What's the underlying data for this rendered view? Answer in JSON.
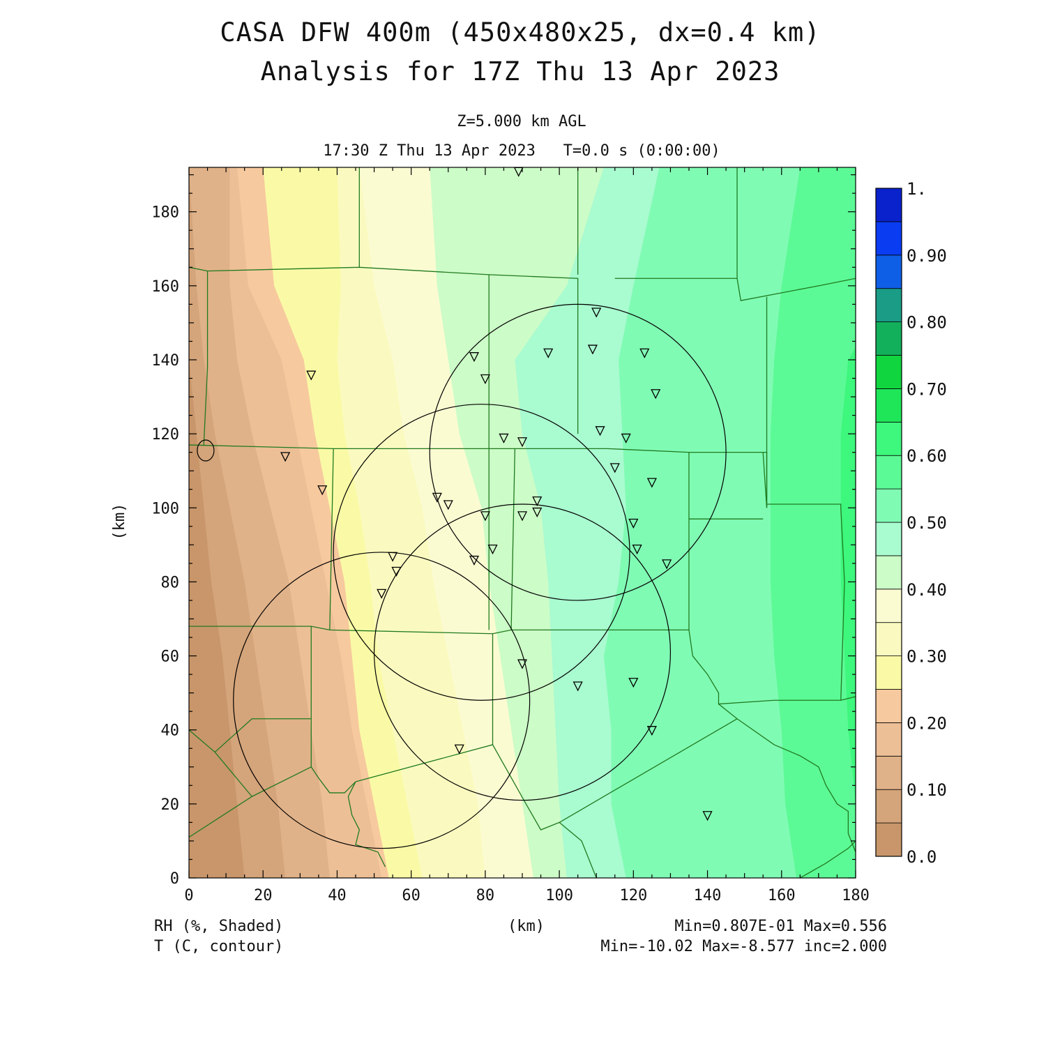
{
  "header": {
    "title_line1": "CASA DFW 400m (450x480x25, dx=0.4 km)",
    "title_line2": "Analysis for 17Z Thu 13 Apr 2023",
    "level": "Z=5.000 km AGL",
    "valid_time": "17:30 Z Thu 13 Apr 2023   T=0.0 s (0:00:00)"
  },
  "footer": {
    "field1": "RH (%, Shaded)",
    "field2": "T (C, contour)",
    "xunit": "(km)",
    "stats1": "Min=0.807E-01 Max=0.556",
    "stats2": "Min=-10.02 Max=-8.577 inc=2.000"
  },
  "chart_data": {
    "type": "heatmap",
    "title": "CASA DFW 400m (450x480x25, dx=0.4 km)",
    "xlabel": "(km)",
    "ylabel": "(km)",
    "xlim": [
      0,
      180
    ],
    "ylim": [
      0,
      192
    ],
    "xticks": [
      0,
      20,
      40,
      60,
      80,
      100,
      120,
      140,
      160,
      180
    ],
    "yticks": [
      0,
      20,
      40,
      60,
      80,
      100,
      120,
      140,
      160,
      180
    ],
    "colorbar": {
      "levels": [
        0.0,
        0.05,
        0.1,
        0.15,
        0.2,
        0.25,
        0.3,
        0.35,
        0.4,
        0.45,
        0.5,
        0.55,
        0.6,
        0.65,
        0.7,
        0.75,
        0.8,
        0.85,
        0.9,
        0.95,
        1.0
      ],
      "labels": [
        "0.0",
        "0.10",
        "0.20",
        "0.30",
        "0.40",
        "0.50",
        "0.60",
        "0.70",
        "0.80",
        "0.90",
        "1."
      ],
      "colors": [
        "#c8966a",
        "#d4a47a",
        "#e0b289",
        "#edbf96",
        "#f7c99e",
        "#fafaa6",
        "#fafac0",
        "#fbfbd2",
        "#ccfcc7",
        "#a9fbd0",
        "#80fbb4",
        "#5cfa96",
        "#3ef77d",
        "#1fe658",
        "#10d53f",
        "#13b05b",
        "#1a9c86",
        "#0f5fe6",
        "#0a3cf2",
        "#0a22cc"
      ]
    },
    "rh_range": {
      "min": 0.0807,
      "max": 0.556
    },
    "t_range": {
      "min": -10.02,
      "max": -8.577,
      "inc": 2.0
    },
    "radar_rings": [
      {
        "center": [
          105,
          115
        ],
        "radius": 40
      },
      {
        "center": [
          79,
          88
        ],
        "radius": 40
      },
      {
        "center": [
          90,
          61
        ],
        "radius": 40
      },
      {
        "center": [
          52,
          48
        ],
        "radius": 40
      }
    ],
    "stations": [
      [
        89,
        191
      ],
      [
        110,
        153
      ],
      [
        109,
        143
      ],
      [
        123,
        142
      ],
      [
        97,
        142
      ],
      [
        77,
        141
      ],
      [
        80,
        135
      ],
      [
        126,
        131
      ],
      [
        33,
        136
      ],
      [
        111,
        121
      ],
      [
        118,
        119
      ],
      [
        85,
        119
      ],
      [
        90,
        118
      ],
      [
        26,
        114
      ],
      [
        115,
        111
      ],
      [
        125,
        107
      ],
      [
        36,
        105
      ],
      [
        67,
        103
      ],
      [
        70,
        101
      ],
      [
        94,
        102
      ],
      [
        94,
        99
      ],
      [
        80,
        98
      ],
      [
        90,
        98
      ],
      [
        120,
        96
      ],
      [
        55,
        87
      ],
      [
        82,
        89
      ],
      [
        77,
        86
      ],
      [
        121,
        89
      ],
      [
        129,
        85
      ],
      [
        56,
        83
      ],
      [
        52,
        77
      ],
      [
        90,
        58
      ],
      [
        120,
        53
      ],
      [
        105,
        52
      ],
      [
        125,
        40
      ],
      [
        73,
        35
      ],
      [
        140,
        17
      ]
    ]
  }
}
